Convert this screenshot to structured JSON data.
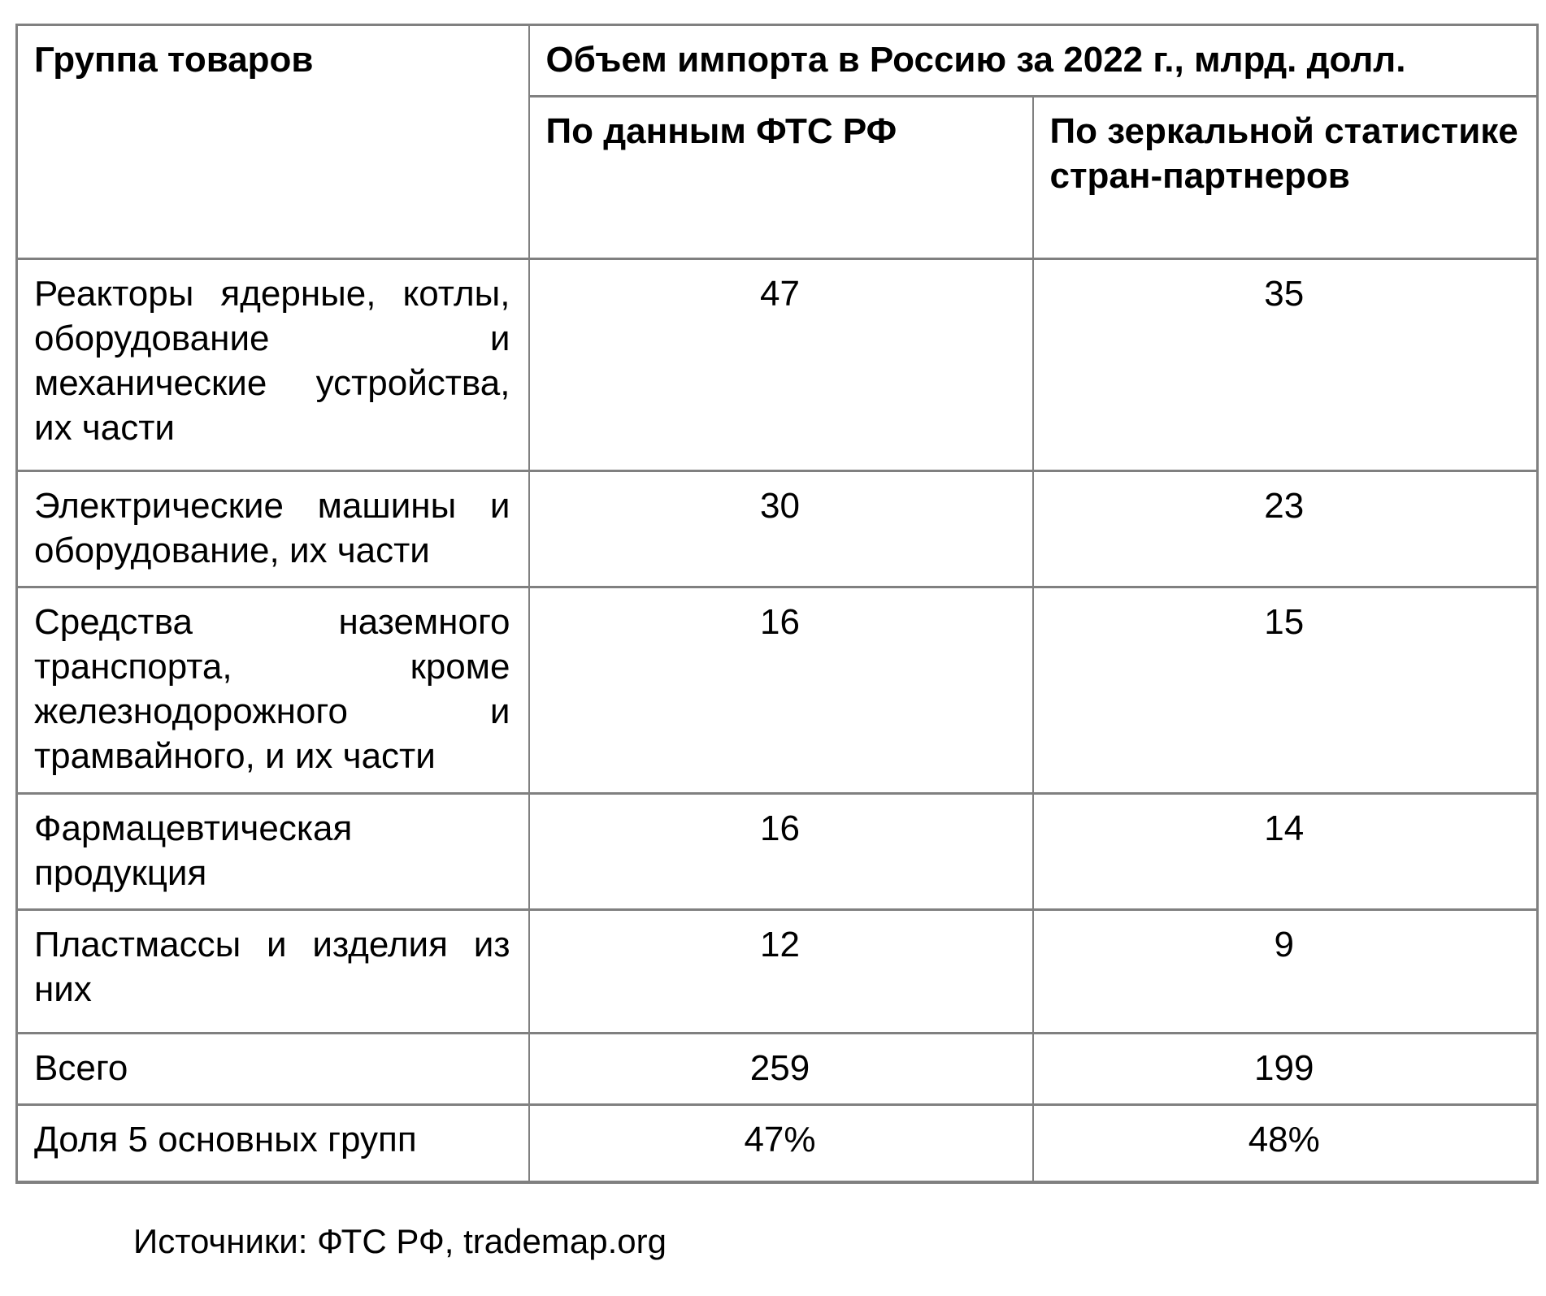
{
  "chart_data": {
    "type": "table",
    "title": "Объем импорта в Россию за 2022 г., млрд. долл.",
    "columns": [
      "Группа товаров",
      "По данным ФТС РФ",
      "По зеркальной статистике стран-партнеров"
    ],
    "unit": "млрд. долл.",
    "year": "2022",
    "rows": [
      {
        "group": "Реакторы ядерные, котлы, оборудование и механические устройства, их части",
        "fts": "47",
        "mirror": "35"
      },
      {
        "group": "Электрические машины и оборудование, их части",
        "fts": "30",
        "mirror": "23"
      },
      {
        "group": "Средства наземного транспорта, кроме железнодорожного и трамвайного, и их части",
        "fts": "16",
        "mirror": "15"
      },
      {
        "group": "Фармацевтическая продукция",
        "fts": "16",
        "mirror": "14"
      },
      {
        "group": "Пластмассы и изделия из них",
        "fts": "12",
        "mirror": "9"
      },
      {
        "group": "Всего",
        "fts": "259",
        "mirror": "199"
      },
      {
        "group": "Доля 5 основных групп",
        "fts": "47%",
        "mirror": "48%"
      }
    ],
    "source": "Источники: ФТС РФ, trademap.org"
  },
  "colors": {
    "border": "#808080",
    "text": "#000000",
    "background": "#ffffff"
  }
}
